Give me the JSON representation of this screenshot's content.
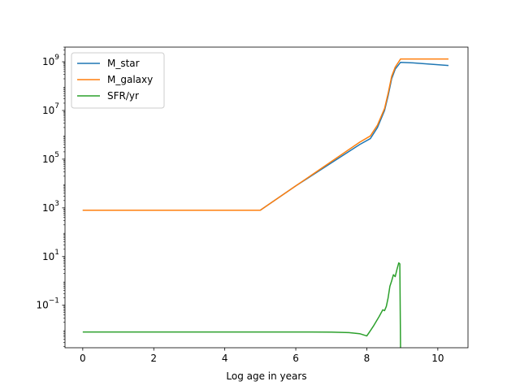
{
  "chart_data": {
    "type": "line",
    "xlabel": "Log age in years",
    "ylabel": "",
    "title": "",
    "xlim": [
      -0.5,
      10.85
    ],
    "ylim": [
      0.0018,
      4000000000.0
    ],
    "y_scale": "log",
    "grid": false,
    "legend_position": "upper-left",
    "x_ticks": [
      0,
      2,
      4,
      6,
      8,
      10
    ],
    "x_tick_labels": [
      "0",
      "2",
      "4",
      "6",
      "8",
      "10"
    ],
    "y_ticks": [
      0.1,
      10,
      1000,
      100000,
      10000000,
      1000000000
    ],
    "y_tick_labels": [
      {
        "base": "10",
        "exp": "−1"
      },
      {
        "base": "10",
        "exp": "1"
      },
      {
        "base": "10",
        "exp": "3"
      },
      {
        "base": "10",
        "exp": "5"
      },
      {
        "base": "10",
        "exp": "7"
      },
      {
        "base": "10",
        "exp": "9"
      }
    ],
    "series": [
      {
        "name": "M_star",
        "color": "#1f77b4",
        "points": [
          [
            0,
            800
          ],
          [
            5,
            800
          ],
          [
            6,
            8000
          ],
          [
            7,
            70000
          ],
          [
            7.8,
            400000
          ],
          [
            8.1,
            700000
          ],
          [
            8.3,
            2000000
          ],
          [
            8.5,
            10000000
          ],
          [
            8.6,
            40000000
          ],
          [
            8.7,
            200000000
          ],
          [
            8.8,
            500000000
          ],
          [
            8.95,
            950000000
          ],
          [
            9.3,
            900000000
          ],
          [
            9.8,
            800000000
          ],
          [
            10.3,
            700000000
          ]
        ]
      },
      {
        "name": "M_galaxy",
        "color": "#ff7f0e",
        "points": [
          [
            0,
            800
          ],
          [
            5,
            800
          ],
          [
            6,
            8000
          ],
          [
            7,
            80000
          ],
          [
            7.8,
            500000
          ],
          [
            8.1,
            900000
          ],
          [
            8.3,
            2500000
          ],
          [
            8.5,
            12000000
          ],
          [
            8.6,
            50000000
          ],
          [
            8.7,
            250000000
          ],
          [
            8.8,
            600000000
          ],
          [
            8.95,
            1300000000
          ],
          [
            9.5,
            1300000000
          ],
          [
            10.3,
            1300000000
          ]
        ]
      },
      {
        "name": "SFR/yr",
        "color": "#2ca02c",
        "points": [
          [
            0,
            0.008
          ],
          [
            6,
            0.008
          ],
          [
            7,
            0.0079
          ],
          [
            7.5,
            0.0075
          ],
          [
            7.8,
            0.0068
          ],
          [
            8.0,
            0.0055
          ],
          [
            8.1,
            0.009
          ],
          [
            8.2,
            0.015
          ],
          [
            8.35,
            0.035
          ],
          [
            8.45,
            0.065
          ],
          [
            8.5,
            0.06
          ],
          [
            8.55,
            0.09
          ],
          [
            8.6,
            0.2
          ],
          [
            8.65,
            0.6
          ],
          [
            8.7,
            1.0
          ],
          [
            8.75,
            1.8
          ],
          [
            8.8,
            1.5
          ],
          [
            8.85,
            3
          ],
          [
            8.9,
            5.5
          ],
          [
            8.93,
            5
          ],
          [
            8.95,
            0.0018
          ]
        ]
      }
    ]
  }
}
